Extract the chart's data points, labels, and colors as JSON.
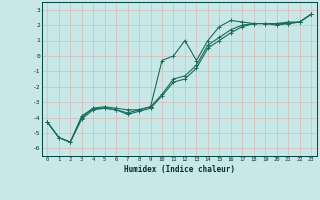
{
  "xlabel": "Humidex (Indice chaleur)",
  "background_color": "#c8e8e8",
  "grid_color": "#dbb8b8",
  "line_color": "#1a6b5a",
  "xlim": [
    -0.5,
    23.5
  ],
  "ylim": [
    -6.5,
    3.5
  ],
  "x_ticks": [
    0,
    1,
    2,
    3,
    4,
    5,
    6,
    7,
    8,
    9,
    10,
    11,
    12,
    13,
    14,
    15,
    16,
    17,
    18,
    19,
    20,
    21,
    22,
    23
  ],
  "y_ticks": [
    -6,
    -5,
    -4,
    -3,
    -2,
    -1,
    0,
    1,
    2,
    3
  ],
  "series1": [
    [
      0,
      -4.3
    ],
    [
      1,
      -5.3
    ],
    [
      2,
      -5.6
    ],
    [
      3,
      -3.9
    ],
    [
      4,
      -3.4
    ],
    [
      5,
      -3.3
    ],
    [
      6,
      -3.4
    ],
    [
      7,
      -3.5
    ],
    [
      8,
      -3.5
    ],
    [
      9,
      -3.3
    ],
    [
      10,
      -0.3
    ],
    [
      11,
      0.0
    ],
    [
      12,
      1.0
    ],
    [
      13,
      -0.3
    ],
    [
      14,
      1.0
    ],
    [
      15,
      1.9
    ],
    [
      16,
      2.3
    ],
    [
      17,
      2.2
    ],
    [
      18,
      2.1
    ],
    [
      19,
      2.1
    ],
    [
      20,
      2.0
    ],
    [
      21,
      2.1
    ],
    [
      22,
      2.2
    ],
    [
      23,
      2.7
    ]
  ],
  "series2": [
    [
      0,
      -4.3
    ],
    [
      1,
      -5.3
    ],
    [
      2,
      -5.6
    ],
    [
      3,
      -4.1
    ],
    [
      4,
      -3.5
    ],
    [
      5,
      -3.4
    ],
    [
      6,
      -3.5
    ],
    [
      7,
      -3.8
    ],
    [
      8,
      -3.6
    ],
    [
      9,
      -3.4
    ],
    [
      10,
      -2.6
    ],
    [
      11,
      -1.7
    ],
    [
      12,
      -1.5
    ],
    [
      13,
      -0.8
    ],
    [
      14,
      0.5
    ],
    [
      15,
      1.0
    ],
    [
      16,
      1.5
    ],
    [
      17,
      1.9
    ],
    [
      18,
      2.1
    ],
    [
      19,
      2.1
    ],
    [
      20,
      2.1
    ],
    [
      21,
      2.1
    ],
    [
      22,
      2.2
    ],
    [
      23,
      2.7
    ]
  ],
  "series3": [
    [
      0,
      -4.3
    ],
    [
      1,
      -5.3
    ],
    [
      2,
      -5.6
    ],
    [
      3,
      -4.0
    ],
    [
      4,
      -3.4
    ],
    [
      5,
      -3.4
    ],
    [
      6,
      -3.5
    ],
    [
      7,
      -3.7
    ],
    [
      8,
      -3.5
    ],
    [
      9,
      -3.3
    ],
    [
      10,
      -2.5
    ],
    [
      11,
      -1.5
    ],
    [
      12,
      -1.3
    ],
    [
      13,
      -0.6
    ],
    [
      14,
      0.7
    ],
    [
      15,
      1.2
    ],
    [
      16,
      1.7
    ],
    [
      17,
      2.0
    ],
    [
      18,
      2.1
    ],
    [
      19,
      2.1
    ],
    [
      20,
      2.1
    ],
    [
      21,
      2.2
    ],
    [
      22,
      2.2
    ],
    [
      23,
      2.7
    ]
  ]
}
